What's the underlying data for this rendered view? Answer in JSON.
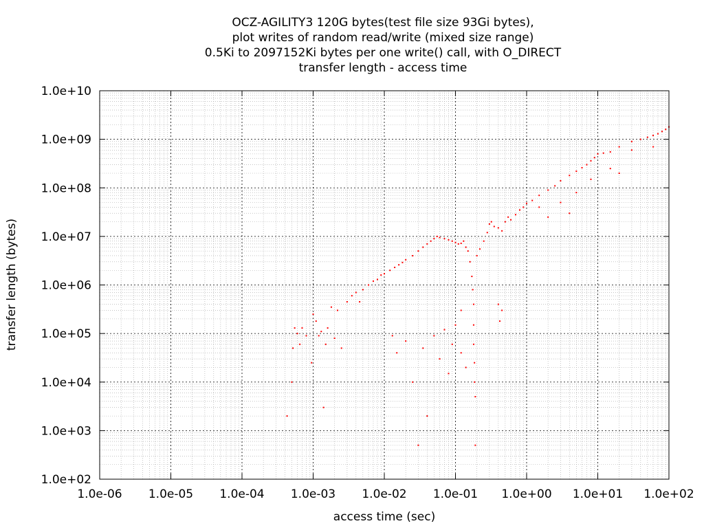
{
  "chart_data": {
    "type": "scatter",
    "title_lines": [
      "OCZ-AGILITY3 120G bytes(test file size 93Gi bytes),",
      "plot writes of random read/write (mixed size range)",
      "0.5Ki to 2097152Ki bytes per one write() call, with O_DIRECT",
      "transfer length - access time"
    ],
    "xlabel": "access time (sec)",
    "ylabel": "transfer length (bytes)",
    "x_scale": "log",
    "y_scale": "log",
    "xlim": [
      1e-06,
      100
    ],
    "ylim": [
      100,
      10000000000
    ],
    "x_ticks": [
      {
        "value": 1e-06,
        "label": "1.0e-06"
      },
      {
        "value": 1e-05,
        "label": "1.0e-05"
      },
      {
        "value": 0.0001,
        "label": "1.0e-04"
      },
      {
        "value": 0.001,
        "label": "1.0e-03"
      },
      {
        "value": 0.01,
        "label": "1.0e-02"
      },
      {
        "value": 0.1,
        "label": "1.0e-01"
      },
      {
        "value": 1,
        "label": "1.0e+00"
      },
      {
        "value": 10,
        "label": "1.0e+01"
      },
      {
        "value": 100,
        "label": "1.0e+02"
      }
    ],
    "y_ticks": [
      {
        "value": 100,
        "label": "1.0e+02"
      },
      {
        "value": 1000,
        "label": "1.0e+03"
      },
      {
        "value": 10000,
        "label": "1.0e+04"
      },
      {
        "value": 100000,
        "label": "1.0e+05"
      },
      {
        "value": 1000000,
        "label": "1.0e+06"
      },
      {
        "value": 10000000,
        "label": "1.0e+07"
      },
      {
        "value": 100000000,
        "label": "1.0e+08"
      },
      {
        "value": 1000000000,
        "label": "1.0e+09"
      },
      {
        "value": 10000000000,
        "label": "1.0e+10"
      }
    ],
    "grid": true,
    "minor_grid": true,
    "point_color": "#ff0000",
    "series": [
      {
        "points": [
          [
            0.00043,
            2000
          ],
          [
            0.0005,
            10000
          ],
          [
            0.00052,
            50000
          ],
          [
            0.00055,
            130000
          ],
          [
            0.0006,
            100000
          ],
          [
            0.00065,
            60000
          ],
          [
            0.0007,
            130000
          ],
          [
            0.0008,
            90000
          ],
          [
            0.00095,
            25000
          ],
          [
            0.001,
            250000
          ],
          [
            0.0011,
            180000
          ],
          [
            0.0012,
            90000
          ],
          [
            0.0013,
            110000
          ],
          [
            0.0014,
            3000
          ],
          [
            0.0015,
            60000
          ],
          [
            0.0016,
            130000
          ],
          [
            0.0018,
            350000
          ],
          [
            0.002,
            80000
          ],
          [
            0.0022,
            300000
          ],
          [
            0.0025,
            50000
          ],
          [
            0.003,
            450000
          ],
          [
            0.0035,
            600000
          ],
          [
            0.004,
            700000
          ],
          [
            0.0045,
            450000
          ],
          [
            0.005,
            800000
          ],
          [
            0.006,
            1000000
          ],
          [
            0.007,
            1200000
          ],
          [
            0.008,
            1300000
          ],
          [
            0.009,
            1600000
          ],
          [
            0.01,
            1700000
          ],
          [
            0.012,
            2000000
          ],
          [
            0.014,
            2300000
          ],
          [
            0.016,
            2600000
          ],
          [
            0.018,
            2900000
          ],
          [
            0.02,
            3300000
          ],
          [
            0.025,
            4000000
          ],
          [
            0.03,
            5000000
          ],
          [
            0.035,
            6000000
          ],
          [
            0.04,
            7000000
          ],
          [
            0.045,
            8000000
          ],
          [
            0.05,
            9000000
          ],
          [
            0.055,
            10000000
          ],
          [
            0.06,
            9500000
          ],
          [
            0.07,
            9000000
          ],
          [
            0.08,
            8500000
          ],
          [
            0.09,
            8000000
          ],
          [
            0.1,
            7500000
          ],
          [
            0.11,
            7000000
          ],
          [
            0.12,
            7200000
          ],
          [
            0.13,
            8000000
          ],
          [
            0.14,
            6000000
          ],
          [
            0.15,
            5000000
          ],
          [
            0.16,
            3000000
          ],
          [
            0.17,
            1500000
          ],
          [
            0.175,
            800000
          ],
          [
            0.18,
            400000
          ],
          [
            0.18,
            150000
          ],
          [
            0.18,
            60000
          ],
          [
            0.185,
            25000
          ],
          [
            0.185,
            10000
          ],
          [
            0.19,
            5000
          ],
          [
            0.19,
            500
          ],
          [
            0.2,
            4000000
          ],
          [
            0.22,
            5500000
          ],
          [
            0.25,
            8000000
          ],
          [
            0.28,
            12000000
          ],
          [
            0.3,
            18000000
          ],
          [
            0.32,
            20000000
          ],
          [
            0.35,
            16000000
          ],
          [
            0.4,
            15000000
          ],
          [
            0.45,
            13000000
          ],
          [
            0.5,
            20000000
          ],
          [
            0.55,
            25000000
          ],
          [
            0.6,
            22000000
          ],
          [
            0.7,
            28000000
          ],
          [
            0.8,
            35000000
          ],
          [
            0.9,
            40000000
          ],
          [
            1.0,
            48000000
          ],
          [
            1.2,
            55000000
          ],
          [
            1.5,
            70000000
          ],
          [
            2.0,
            90000000
          ],
          [
            2.5,
            110000000
          ],
          [
            3.0,
            140000000
          ],
          [
            4.0,
            180000000
          ],
          [
            5.0,
            220000000
          ],
          [
            6.0,
            260000000
          ],
          [
            7.0,
            300000000
          ],
          [
            8.0,
            360000000
          ],
          [
            9.0,
            420000000
          ],
          [
            10.0,
            500000000
          ],
          [
            12.0,
            520000000
          ],
          [
            15.0,
            550000000
          ],
          [
            20.0,
            700000000
          ],
          [
            30.0,
            900000000
          ],
          [
            40.0,
            1000000000
          ],
          [
            50.0,
            1100000000
          ],
          [
            60.0,
            1200000000
          ],
          [
            70.0,
            1300000000
          ],
          [
            80.0,
            1450000000
          ],
          [
            90.0,
            1600000000
          ],
          [
            100.0,
            1800000000
          ],
          [
            0.013,
            90000
          ],
          [
            0.015,
            40000
          ],
          [
            0.02,
            70000
          ],
          [
            0.025,
            10000
          ],
          [
            0.03,
            500
          ],
          [
            0.035,
            50000
          ],
          [
            0.04,
            2000
          ],
          [
            0.05,
            90000
          ],
          [
            0.06,
            30000
          ],
          [
            0.07,
            120000
          ],
          [
            0.08,
            15000
          ],
          [
            0.09,
            60000
          ],
          [
            0.1,
            150000
          ],
          [
            0.12,
            300000
          ],
          [
            0.12,
            40000
          ],
          [
            0.14,
            20000
          ],
          [
            0.45,
            300000
          ],
          [
            0.42,
            180000
          ],
          [
            0.4,
            400000
          ],
          [
            1.5,
            40000000
          ],
          [
            2.0,
            25000000
          ],
          [
            3.0,
            50000000
          ],
          [
            4.0,
            30000000
          ],
          [
            5.0,
            80000000
          ],
          [
            8.0,
            150000000
          ],
          [
            15.0,
            250000000
          ],
          [
            20.0,
            200000000
          ],
          [
            30.0,
            600000000
          ],
          [
            60.0,
            700000000
          ]
        ]
      }
    ]
  }
}
